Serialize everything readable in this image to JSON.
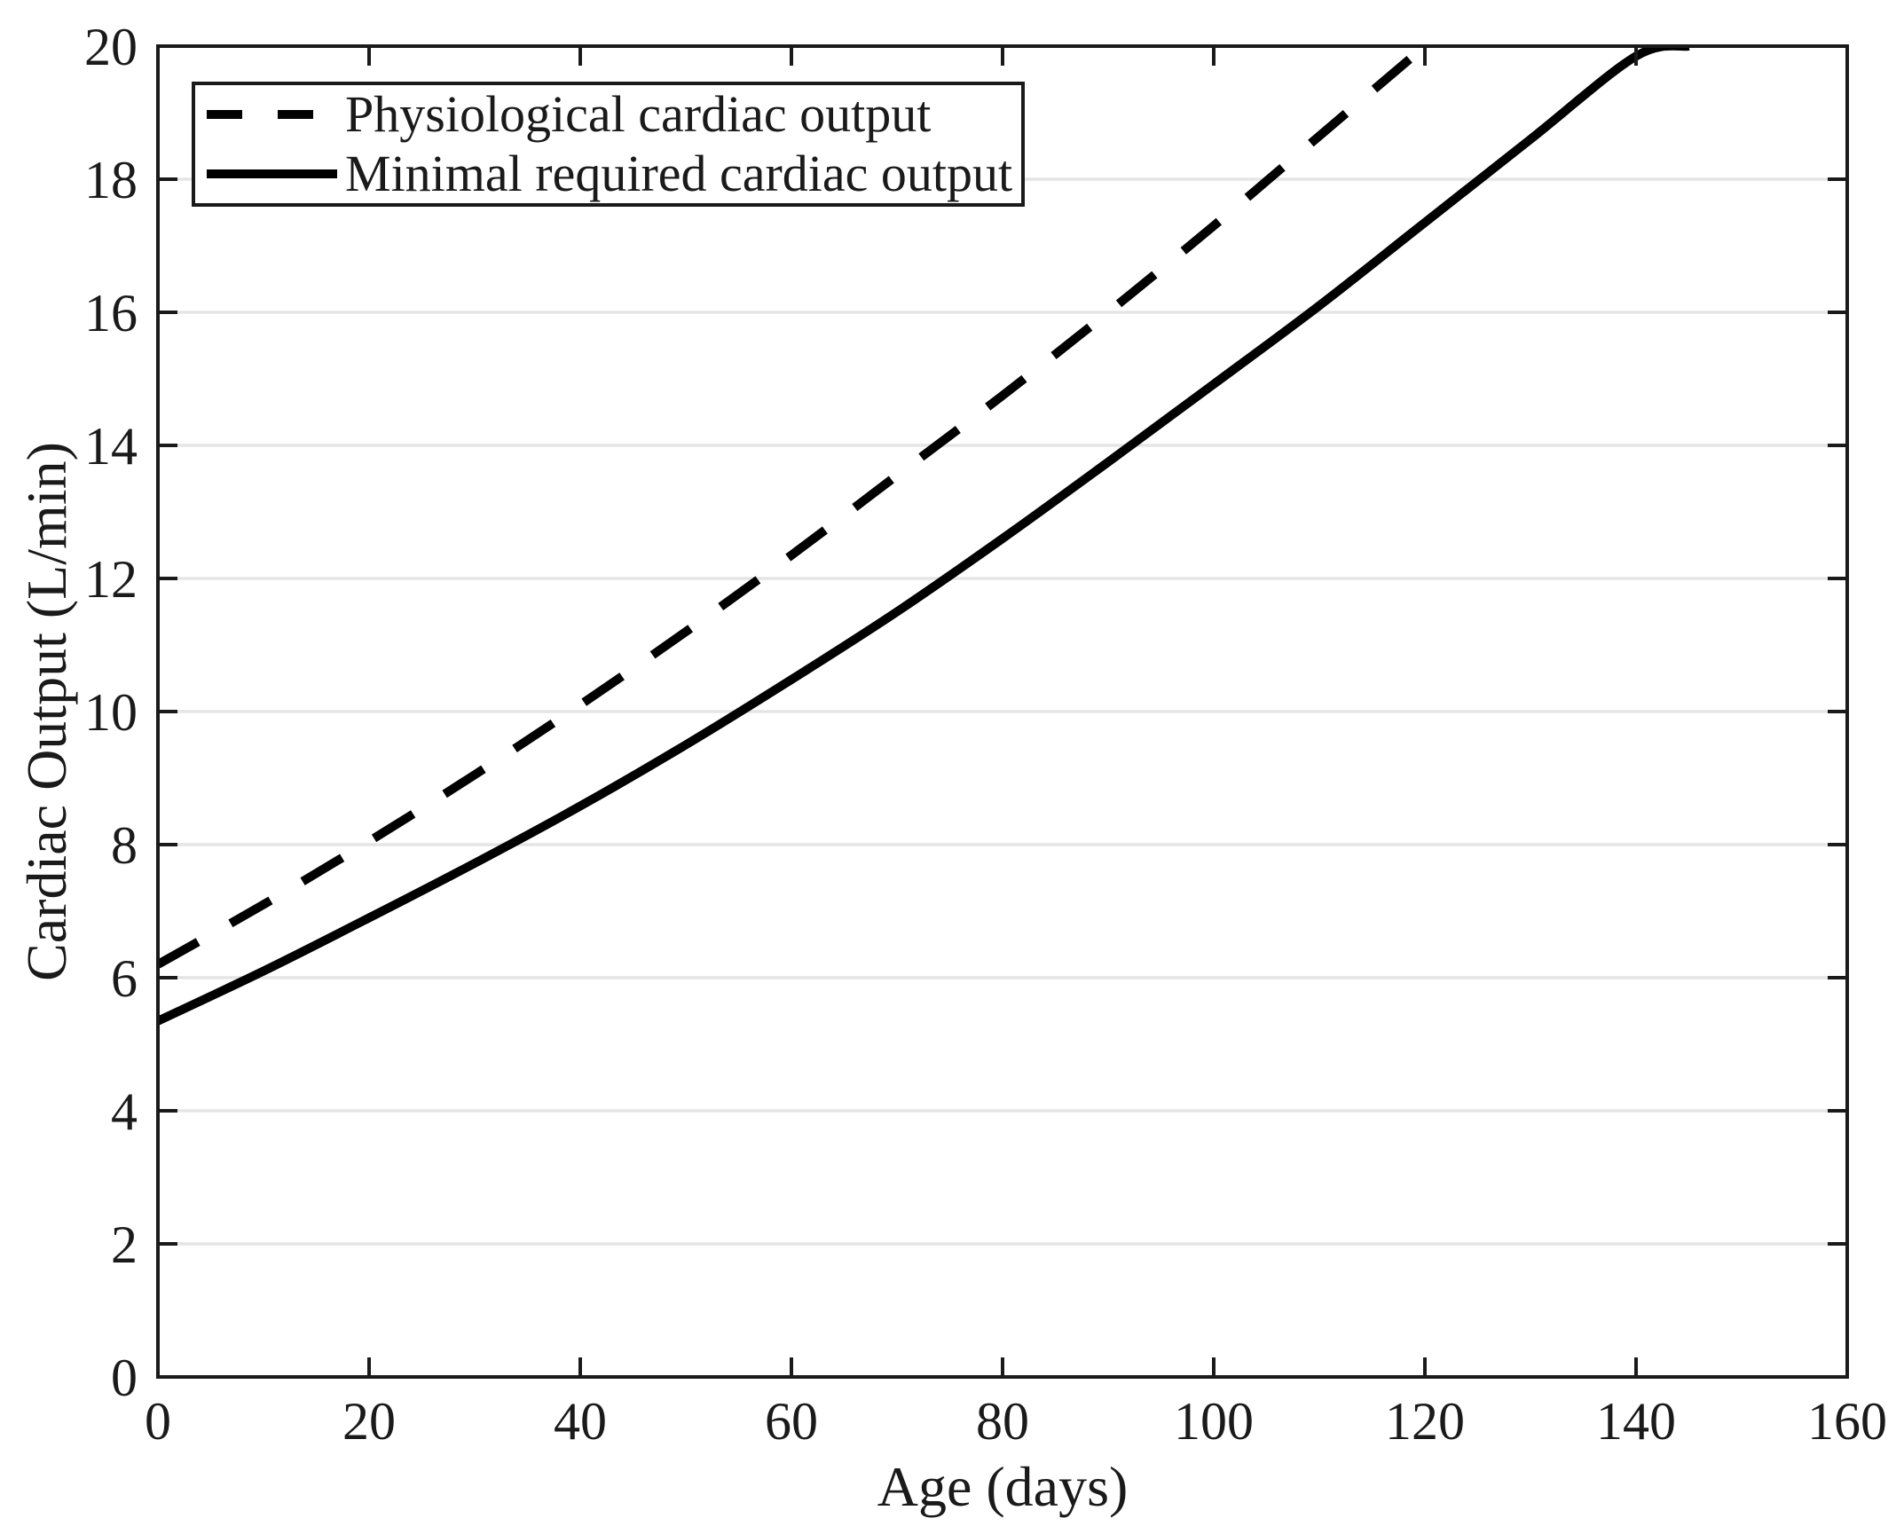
{
  "colors": {
    "background": "#ffffff",
    "axis": "#1a1a1a",
    "text": "#1a1a1a",
    "grid": "#e5e5e5",
    "curve": "#000000"
  },
  "chart_data": {
    "type": "line",
    "title": "",
    "xlabel": "Age (days)",
    "ylabel": "Cardiac Output (L/min)",
    "xlim": [
      0,
      160
    ],
    "ylim": [
      0,
      20
    ],
    "xticks": [
      0,
      20,
      40,
      60,
      80,
      100,
      120,
      140,
      160
    ],
    "yticks": [
      0,
      2,
      4,
      6,
      8,
      10,
      12,
      14,
      16,
      18,
      20
    ],
    "grid": "horizontal-only",
    "box": true,
    "tick_direction": "in",
    "legend_position": "top-left",
    "series": [
      {
        "name": "Physiological cardiac output",
        "style": "dashed",
        "color": "#000000",
        "x": [
          0,
          10,
          20,
          30,
          40,
          50,
          60,
          70,
          80,
          90,
          100,
          110,
          120
        ],
        "y": [
          6.2,
          7.1,
          8.05,
          9.05,
          10.1,
          11.2,
          12.35,
          13.55,
          14.75,
          16.0,
          17.3,
          18.65,
          20.0
        ]
      },
      {
        "name": "Minimal required cardiac output",
        "style": "solid",
        "color": "#000000",
        "x": [
          0,
          10,
          20,
          30,
          40,
          50,
          60,
          70,
          80,
          90,
          100,
          110,
          120,
          130,
          140,
          145
        ],
        "y": [
          5.35,
          6.1,
          6.9,
          7.72,
          8.58,
          9.5,
          10.48,
          11.5,
          12.6,
          13.75,
          14.92,
          16.1,
          17.35,
          18.6,
          19.85,
          20.0
        ]
      }
    ]
  }
}
